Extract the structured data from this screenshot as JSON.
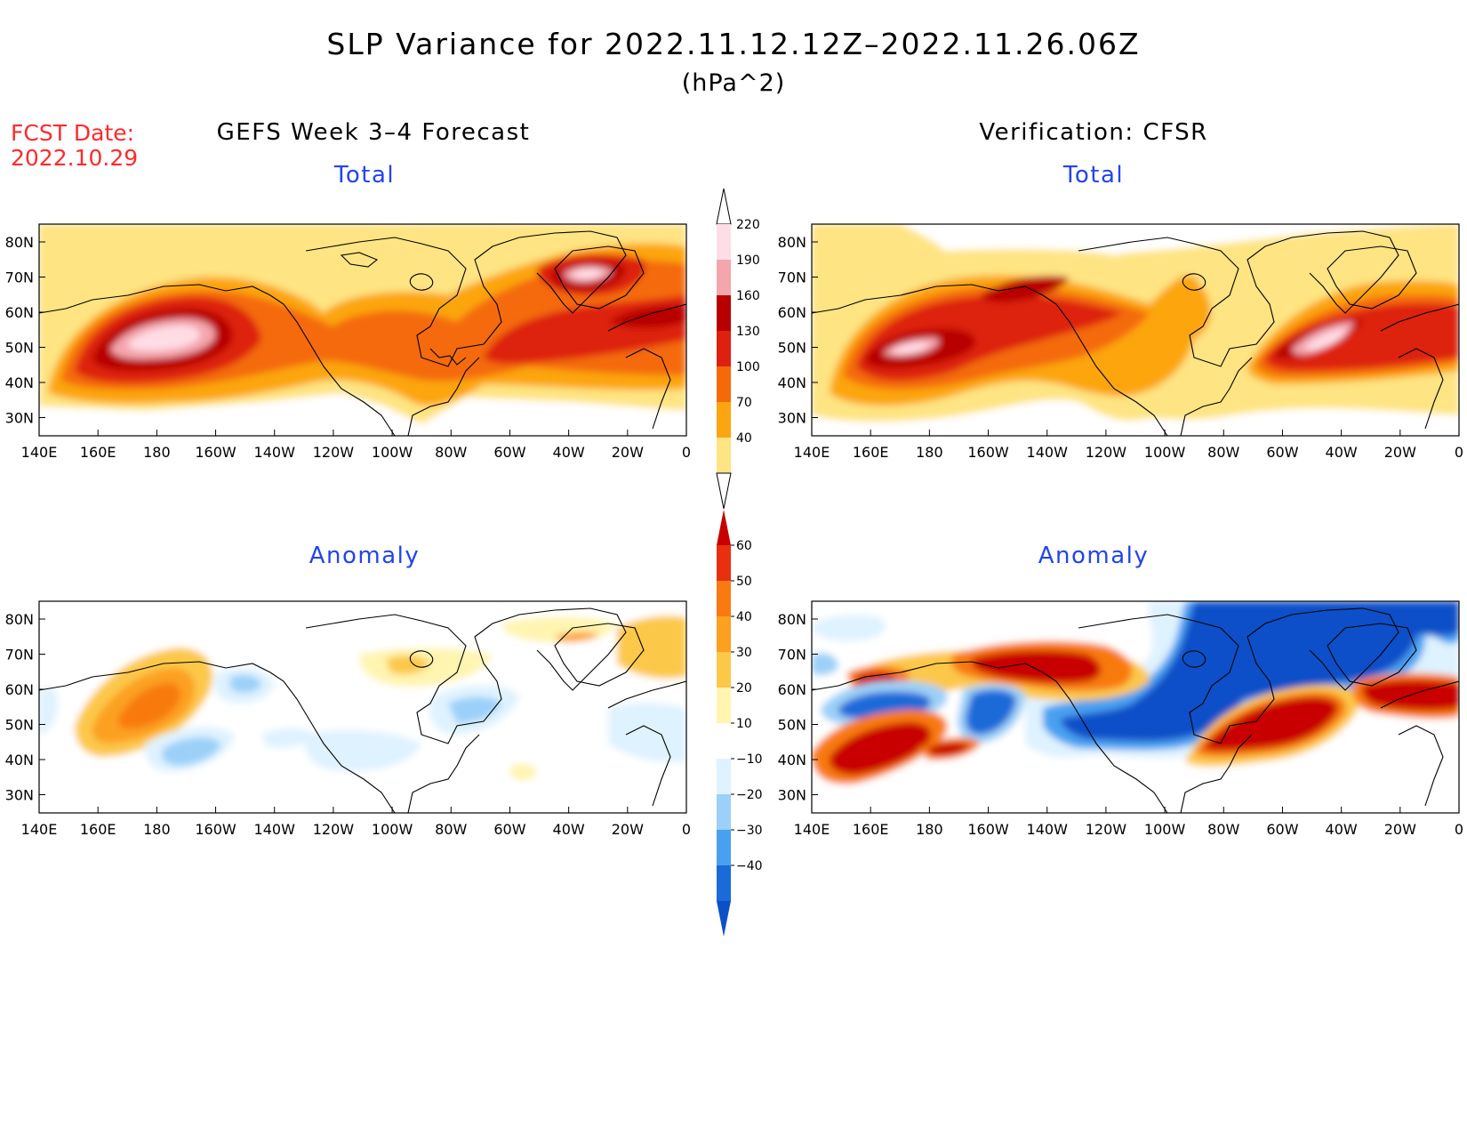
{
  "title": "SLP Variance for 2022.11.12.12Z–2022.11.26.06Z",
  "units": "(hPa^2)",
  "fcst_date_label": "FCST Date:",
  "fcst_date": "2022.10.29",
  "columns": {
    "left": "GEFS Week 3–4 Forecast",
    "right": "Verification: CFSR"
  },
  "panels": {
    "top_left": "Total",
    "top_right": "Total",
    "bottom_left": "Anomaly",
    "bottom_right": "Anomaly"
  },
  "axes": {
    "lat_ticks": [
      "80N",
      "70N",
      "60N",
      "50N",
      "40N",
      "30N"
    ],
    "lon_ticks": [
      "140E",
      "160E",
      "180",
      "160W",
      "140W",
      "120W",
      "100W",
      "80W",
      "60W",
      "40W",
      "20W",
      "0"
    ]
  },
  "colorbars": {
    "total": {
      "levels": [
        "220",
        "190",
        "160",
        "130",
        "100",
        "70",
        "40"
      ],
      "colors": [
        "#ffdde6",
        "#f4a6ad",
        "#b80000",
        "#dd2010",
        "#f46a08",
        "#fca510",
        "#fee482"
      ]
    },
    "anomaly": {
      "levels": [
        "60",
        "50",
        "40",
        "30",
        "20",
        "10",
        "−10",
        "−20",
        "−30",
        "−40"
      ],
      "colors": [
        "#c80000",
        "#e83010",
        "#f87a10",
        "#fca020",
        "#fcc848",
        "#fff4b0",
        "#ffffff",
        "#dff2ff",
        "#9cd0f8",
        "#4aa0f0",
        "#1a6ad8",
        "#0c50c8"
      ]
    }
  }
}
